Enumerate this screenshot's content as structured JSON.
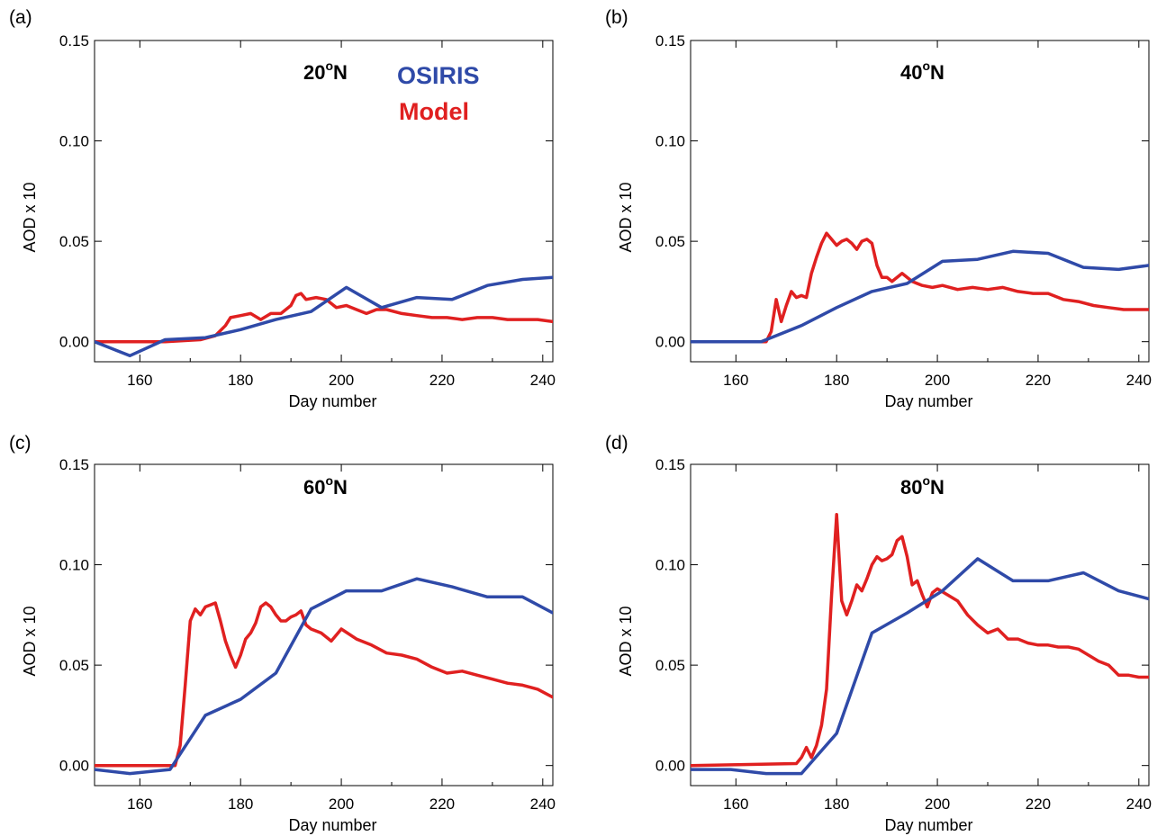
{
  "colors": {
    "osiris": "#2f4aa8",
    "model": "#e02020"
  },
  "legend": {
    "osiris_label": "OSIRIS",
    "model_label": "Model"
  },
  "chart_data": [
    {
      "type": "line",
      "panel": "(a)",
      "latitude": "20",
      "latitude_suffix": "N",
      "xlabel": "Day number",
      "ylabel": "AOD x 10",
      "xlim": [
        151,
        242
      ],
      "ylim": [
        -0.01,
        0.15
      ],
      "xticks": [
        160,
        180,
        200,
        220,
        240
      ],
      "yticks": [
        "0.00",
        "0.05",
        "0.10",
        "0.15"
      ],
      "ytick_values": [
        0,
        0.05,
        0.1,
        0.15
      ],
      "series": [
        {
          "name": "OSIRIS",
          "x": [
            151,
            158,
            165,
            173,
            180,
            187,
            194,
            201,
            208,
            215,
            222,
            229,
            236,
            242
          ],
          "y": [
            0.0,
            -0.007,
            0.001,
            0.002,
            0.006,
            0.011,
            0.015,
            0.027,
            0.017,
            0.022,
            0.021,
            0.028,
            0.031,
            0.032
          ]
        },
        {
          "name": "Model",
          "x": [
            151,
            165,
            172,
            175,
            177,
            178,
            180,
            182,
            184,
            186,
            188,
            190,
            191,
            192,
            193,
            195,
            197,
            199,
            201,
            203,
            205,
            207,
            209,
            212,
            215,
            218,
            221,
            224,
            227,
            230,
            233,
            236,
            239,
            242
          ],
          "y": [
            0.0,
            0.0,
            0.001,
            0.003,
            0.008,
            0.012,
            0.013,
            0.014,
            0.011,
            0.014,
            0.014,
            0.018,
            0.023,
            0.024,
            0.021,
            0.022,
            0.021,
            0.017,
            0.018,
            0.016,
            0.014,
            0.016,
            0.016,
            0.014,
            0.013,
            0.012,
            0.012,
            0.011,
            0.012,
            0.012,
            0.011,
            0.011,
            0.011,
            0.01
          ]
        }
      ]
    },
    {
      "type": "line",
      "panel": "(b)",
      "latitude": "40",
      "latitude_suffix": "N",
      "xlabel": "Day number",
      "ylabel": "AOD x 10",
      "xlim": [
        151,
        242
      ],
      "ylim": [
        -0.01,
        0.15
      ],
      "xticks": [
        160,
        180,
        200,
        220,
        240
      ],
      "yticks": [
        "0.00",
        "0.05",
        "0.10",
        "0.15"
      ],
      "ytick_values": [
        0,
        0.05,
        0.1,
        0.15
      ],
      "series": [
        {
          "name": "OSIRIS",
          "x": [
            151,
            158,
            165,
            173,
            180,
            187,
            194,
            201,
            208,
            215,
            222,
            229,
            236,
            242
          ],
          "y": [
            0.0,
            0.0,
            0.0,
            0.008,
            0.017,
            0.025,
            0.029,
            0.04,
            0.041,
            0.045,
            0.044,
            0.037,
            0.036,
            0.038
          ]
        },
        {
          "name": "Model",
          "x": [
            151,
            166,
            167,
            168,
            169,
            170,
            171,
            172,
            173,
            174,
            175,
            176,
            177,
            178,
            179,
            180,
            181,
            182,
            183,
            184,
            185,
            186,
            187,
            188,
            189,
            190,
            191,
            193,
            195,
            197,
            199,
            201,
            204,
            207,
            210,
            213,
            216,
            219,
            222,
            225,
            228,
            231,
            234,
            237,
            240,
            242
          ],
          "y": [
            0.0,
            0.0,
            0.005,
            0.021,
            0.01,
            0.018,
            0.025,
            0.022,
            0.023,
            0.022,
            0.034,
            0.042,
            0.049,
            0.054,
            0.051,
            0.048,
            0.05,
            0.051,
            0.049,
            0.046,
            0.05,
            0.051,
            0.049,
            0.038,
            0.032,
            0.032,
            0.03,
            0.034,
            0.03,
            0.028,
            0.027,
            0.028,
            0.026,
            0.027,
            0.026,
            0.027,
            0.025,
            0.024,
            0.024,
            0.021,
            0.02,
            0.018,
            0.017,
            0.016,
            0.016,
            0.016
          ]
        }
      ]
    },
    {
      "type": "line",
      "panel": "(c)",
      "latitude": "60",
      "latitude_suffix": "N",
      "xlabel": "Day number",
      "ylabel": "AOD x 10",
      "xlim": [
        151,
        242
      ],
      "ylim": [
        -0.01,
        0.15
      ],
      "xticks": [
        160,
        180,
        200,
        220,
        240
      ],
      "yticks": [
        "0.00",
        "0.05",
        "0.10",
        "0.15"
      ],
      "ytick_values": [
        0,
        0.05,
        0.1,
        0.15
      ],
      "series": [
        {
          "name": "OSIRIS",
          "x": [
            151,
            158,
            166,
            173,
            180,
            187,
            194,
            201,
            208,
            215,
            222,
            229,
            236,
            242
          ],
          "y": [
            -0.002,
            -0.004,
            -0.002,
            0.025,
            0.033,
            0.046,
            0.078,
            0.087,
            0.087,
            0.093,
            0.089,
            0.084,
            0.084,
            0.076
          ]
        },
        {
          "name": "Model",
          "x": [
            151,
            167,
            168,
            169,
            170,
            171,
            172,
            173,
            174,
            175,
            176,
            177,
            178,
            179,
            180,
            181,
            182,
            183,
            184,
            185,
            186,
            187,
            188,
            189,
            190,
            191,
            192,
            193,
            194,
            196,
            198,
            200,
            203,
            206,
            209,
            212,
            215,
            218,
            221,
            224,
            227,
            230,
            233,
            236,
            239,
            242
          ],
          "y": [
            0.0,
            0.0,
            0.01,
            0.04,
            0.072,
            0.078,
            0.075,
            0.079,
            0.08,
            0.081,
            0.072,
            0.062,
            0.055,
            0.049,
            0.055,
            0.063,
            0.066,
            0.071,
            0.079,
            0.081,
            0.079,
            0.075,
            0.072,
            0.072,
            0.074,
            0.075,
            0.077,
            0.07,
            0.068,
            0.066,
            0.062,
            0.068,
            0.063,
            0.06,
            0.056,
            0.055,
            0.053,
            0.049,
            0.046,
            0.047,
            0.045,
            0.043,
            0.041,
            0.04,
            0.038,
            0.034
          ]
        }
      ]
    },
    {
      "type": "line",
      "panel": "(d)",
      "latitude": "80",
      "latitude_suffix": "N",
      "xlabel": "Day number",
      "ylabel": "AOD x 10",
      "xlim": [
        151,
        242
      ],
      "ylim": [
        -0.01,
        0.15
      ],
      "xticks": [
        160,
        180,
        200,
        220,
        240
      ],
      "yticks": [
        "0.00",
        "0.05",
        "0.10",
        "0.15"
      ],
      "ytick_values": [
        0,
        0.05,
        0.1,
        0.15
      ],
      "series": [
        {
          "name": "OSIRIS",
          "x": [
            151,
            159,
            166,
            173,
            180,
            187,
            194,
            201,
            208,
            215,
            222,
            229,
            236,
            242
          ],
          "y": [
            -0.002,
            -0.002,
            -0.004,
            -0.004,
            0.016,
            0.066,
            0.076,
            0.087,
            0.103,
            0.092,
            0.092,
            0.096,
            0.087,
            0.083
          ]
        },
        {
          "name": "Model",
          "x": [
            151,
            172,
            173,
            174,
            175,
            176,
            177,
            178,
            179,
            180,
            181,
            182,
            183,
            184,
            185,
            186,
            187,
            188,
            189,
            190,
            191,
            192,
            193,
            194,
            195,
            196,
            197,
            198,
            199,
            200,
            202,
            204,
            206,
            208,
            210,
            212,
            214,
            216,
            218,
            220,
            222,
            224,
            226,
            228,
            230,
            232,
            234,
            236,
            238,
            240,
            242
          ],
          "y": [
            0.0,
            0.001,
            0.004,
            0.009,
            0.004,
            0.01,
            0.02,
            0.038,
            0.085,
            0.125,
            0.082,
            0.075,
            0.082,
            0.09,
            0.087,
            0.093,
            0.1,
            0.104,
            0.102,
            0.103,
            0.105,
            0.112,
            0.114,
            0.104,
            0.09,
            0.092,
            0.085,
            0.079,
            0.086,
            0.088,
            0.085,
            0.082,
            0.075,
            0.07,
            0.066,
            0.068,
            0.063,
            0.063,
            0.061,
            0.06,
            0.06,
            0.059,
            0.059,
            0.058,
            0.055,
            0.052,
            0.05,
            0.045,
            0.045,
            0.044,
            0.044
          ]
        }
      ]
    }
  ]
}
